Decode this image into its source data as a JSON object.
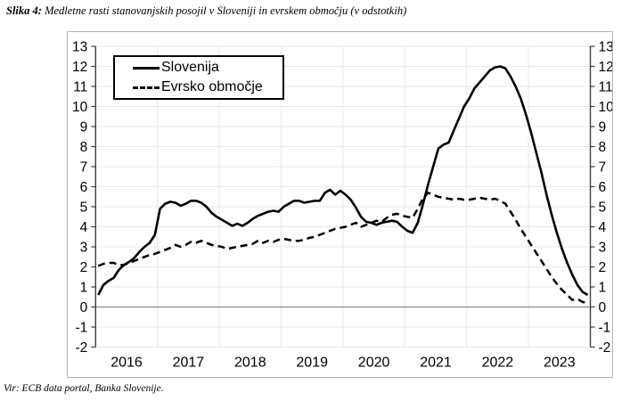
{
  "header": {
    "title_prefix": "Slika 4:",
    "title_text": "Medletne rasti stanovanjskih posojil v Sloveniji in evrskem območju (v odstotkih)"
  },
  "footer": {
    "source": "Vir: ECB data portal, Banka Slovenije."
  },
  "chart_data": {
    "type": "line",
    "title": "Medletne rasti stanovanjskih posojil v Sloveniji in evrskem območju (v odstotkih)",
    "x_frequency": "monthly",
    "x_range": [
      "2016-01",
      "2023-12"
    ],
    "x_tick_labels": [
      "2016",
      "2017",
      "2018",
      "2019",
      "2020",
      "2021",
      "2022",
      "2023"
    ],
    "ylim": [
      -2,
      13
    ],
    "y_ticks": [
      -2,
      -1,
      0,
      1,
      2,
      3,
      4,
      5,
      6,
      7,
      8,
      9,
      10,
      11,
      12,
      13
    ],
    "grid": true,
    "legend_position": "top-left",
    "axis_color": "#404040",
    "gridline_color": "#e8e8e8",
    "zeroline_color": "#9a9a9a",
    "line_color": "#000000",
    "series": [
      {
        "name": "Slovenija",
        "line_style": "solid",
        "values": [
          0.6,
          1.1,
          1.3,
          1.45,
          1.85,
          2.1,
          2.25,
          2.45,
          2.75,
          3.0,
          3.2,
          3.6,
          4.9,
          5.15,
          5.25,
          5.2,
          5.05,
          5.15,
          5.3,
          5.3,
          5.2,
          5.0,
          4.7,
          4.5,
          4.35,
          4.2,
          4.05,
          4.15,
          4.05,
          4.2,
          4.4,
          4.55,
          4.65,
          4.75,
          4.8,
          4.75,
          5.0,
          5.15,
          5.3,
          5.3,
          5.2,
          5.25,
          5.3,
          5.3,
          5.7,
          5.85,
          5.6,
          5.8,
          5.6,
          5.35,
          4.95,
          4.5,
          4.25,
          4.2,
          4.1,
          4.2,
          4.25,
          4.3,
          4.25,
          4.0,
          3.8,
          3.7,
          4.2,
          5.1,
          6.1,
          7.0,
          7.9,
          8.1,
          8.2,
          8.8,
          9.4,
          10.0,
          10.4,
          10.9,
          11.2,
          11.5,
          11.8,
          11.95,
          12.0,
          11.9,
          11.5,
          11.0,
          10.4,
          9.6,
          8.7,
          7.7,
          6.7,
          5.6,
          4.6,
          3.7,
          2.9,
          2.2,
          1.6,
          1.1,
          0.75,
          0.6
        ]
      },
      {
        "name": "Evrsko območje",
        "line_style": "dashed",
        "values": [
          2.05,
          2.15,
          2.2,
          2.2,
          2.1,
          2.1,
          2.2,
          2.3,
          2.4,
          2.5,
          2.6,
          2.65,
          2.75,
          2.85,
          2.95,
          3.1,
          3.0,
          3.1,
          3.25,
          3.2,
          3.3,
          3.2,
          3.1,
          3.05,
          3.0,
          2.9,
          2.95,
          3.0,
          3.05,
          3.1,
          3.15,
          3.3,
          3.2,
          3.3,
          3.25,
          3.35,
          3.4,
          3.35,
          3.3,
          3.3,
          3.35,
          3.45,
          3.5,
          3.6,
          3.7,
          3.8,
          3.9,
          3.95,
          4.0,
          4.1,
          4.2,
          4.0,
          4.1,
          4.2,
          4.3,
          4.25,
          4.45,
          4.6,
          4.65,
          4.55,
          4.5,
          4.45,
          4.9,
          5.4,
          5.7,
          5.6,
          5.5,
          5.45,
          5.4,
          5.35,
          5.4,
          5.35,
          5.35,
          5.4,
          5.45,
          5.4,
          5.35,
          5.4,
          5.3,
          5.15,
          4.75,
          4.35,
          3.9,
          3.5,
          3.1,
          2.7,
          2.3,
          1.9,
          1.5,
          1.15,
          0.85,
          0.6,
          0.35,
          0.4,
          0.25,
          0.2
        ]
      }
    ]
  }
}
